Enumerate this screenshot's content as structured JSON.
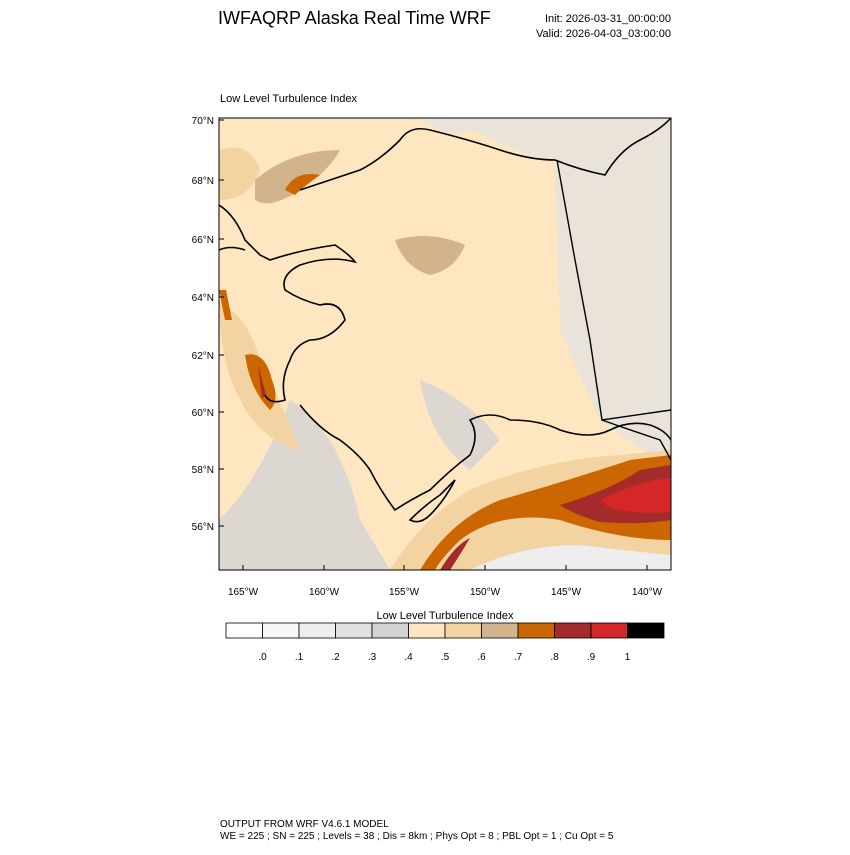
{
  "header": {
    "title": "IWFAQRP Alaska Real Time WRF",
    "init": "Init: 2026-03-31_00:00:00",
    "valid": "Valid: 2026-04-03_03:00:00"
  },
  "map": {
    "title": "Low Level Turbulence Index",
    "lat_labels": [
      "70°N",
      "68°N",
      "66°N",
      "64°N",
      "62°N",
      "60°N",
      "58°N",
      "56°N"
    ],
    "lon_labels": [
      "165°W",
      "160°W",
      "155°W",
      "150°W",
      "145°W",
      "140°W"
    ]
  },
  "colorbar": {
    "title": "Low Level Turbulence Index",
    "labels": [
      ".0",
      ".1",
      ".2",
      ".3",
      ".4",
      ".5",
      ".6",
      ".7",
      ".8",
      ".9",
      "1"
    ],
    "colors": [
      "#ffffff",
      "#f7f7f7",
      "#eeeeee",
      "#e1e1e1",
      "#d3d3d3",
      "#fde6c0",
      "#f4d3a3",
      "#d2b48c",
      "#cc6600",
      "#a52a2a",
      "#d62728",
      "#000000"
    ]
  },
  "footer": {
    "line1": "OUTPUT FROM WRF V4.6.1 MODEL",
    "line2": "WE = 225 ; SN = 225 ; Levels = 38 ; Dis = 8km ; Phys Opt = 8 ; PBL Opt = 1 ; Cu Opt = 5"
  }
}
